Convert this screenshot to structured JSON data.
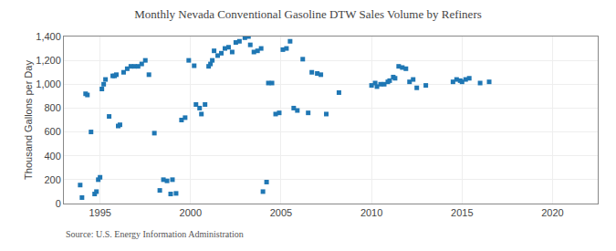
{
  "chart_data": {
    "type": "scatter",
    "title": "Monthly Nevada Conventional Gasoline DTW Sales Volume by Refiners",
    "ylabel": "Thousand Gallons per Day",
    "annotations": [
      "Source: U.S. Energy Information Administration"
    ],
    "marker": "square",
    "grid": true,
    "xlim": [
      1993.0,
      2022.5
    ],
    "ylim": [
      0,
      1400
    ],
    "xticks": [
      1995,
      2000,
      2005,
      2010,
      2015,
      2020
    ],
    "yticks": [
      0,
      200,
      400,
      600,
      800,
      {
        "value": 1000,
        "label": "1,000"
      },
      {
        "value": 1200,
        "label": "1,200"
      },
      {
        "value": 1400,
        "label": "1,400"
      }
    ],
    "x": [
      1993.9,
      1994.0,
      1994.2,
      1994.3,
      1994.5,
      1994.7,
      1994.8,
      1994.9,
      1995.0,
      1995.1,
      1995.2,
      1995.3,
      1995.5,
      1995.7,
      1995.8,
      1995.9,
      1996.0,
      1996.1,
      1996.3,
      1996.5,
      1996.7,
      1996.9,
      1997.1,
      1997.3,
      1997.5,
      1997.7,
      1998.0,
      1998.3,
      1998.5,
      1998.7,
      1998.9,
      1999.0,
      1999.2,
      1999.5,
      1999.7,
      1999.9,
      2000.2,
      2000.3,
      2000.5,
      2000.6,
      2000.8,
      2001.0,
      2001.1,
      2001.2,
      2001.3,
      2001.5,
      2001.7,
      2001.9,
      2002.1,
      2002.3,
      2002.5,
      2002.7,
      2003.0,
      2003.2,
      2003.3,
      2003.5,
      2003.7,
      2003.9,
      2004.0,
      2004.2,
      2004.3,
      2004.5,
      2004.7,
      2004.9,
      2005.1,
      2005.3,
      2005.5,
      2005.7,
      2005.9,
      2006.2,
      2006.5,
      2006.7,
      2007.0,
      2007.2,
      2007.5,
      2008.2,
      2010.0,
      2010.2,
      2010.3,
      2010.5,
      2010.7,
      2010.9,
      2011.0,
      2011.2,
      2011.3,
      2011.5,
      2011.7,
      2011.9,
      2012.1,
      2012.3,
      2012.5,
      2013.0,
      2014.5,
      2014.7,
      2014.9,
      2015.0,
      2015.2,
      2015.4,
      2016.0,
      2016.5
    ],
    "values": [
      155,
      50,
      920,
      910,
      600,
      80,
      100,
      200,
      220,
      960,
      1000,
      1040,
      730,
      1070,
      1070,
      1080,
      650,
      660,
      1100,
      1130,
      1150,
      1150,
      1150,
      1170,
      1200,
      1080,
      590,
      110,
      200,
      190,
      80,
      200,
      85,
      700,
      720,
      1200,
      1155,
      830,
      800,
      750,
      830,
      1150,
      1170,
      1200,
      1280,
      1240,
      1260,
      1300,
      1310,
      1270,
      1350,
      1360,
      1390,
      1400,
      1330,
      1270,
      1280,
      1300,
      100,
      180,
      1010,
      1010,
      750,
      760,
      1290,
      1300,
      1360,
      800,
      780,
      1210,
      760,
      1100,
      1090,
      1080,
      750,
      930,
      990,
      1010,
      980,
      1000,
      1000,
      1020,
      1030,
      1060,
      1050,
      1150,
      1140,
      1130,
      1020,
      1040,
      970,
      990,
      1020,
      1040,
      1030,
      1020,
      1040,
      1050,
      1010,
      1020
    ]
  }
}
